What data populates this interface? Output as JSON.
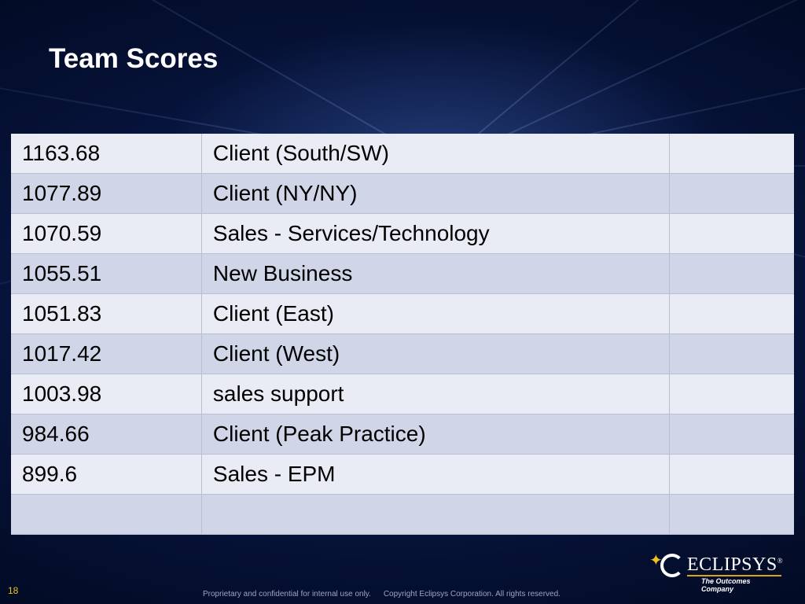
{
  "slide": {
    "title": "Team Scores",
    "page_number": "18"
  },
  "table": {
    "rows": [
      {
        "score": "1163.68",
        "team": "Client (South/SW)",
        "extra": ""
      },
      {
        "score": "1077.89",
        "team": "Client (NY/NY)",
        "extra": ""
      },
      {
        "score": "1070.59",
        "team": "Sales - Services/Technology",
        "extra": ""
      },
      {
        "score": "1055.51",
        "team": "New Business",
        "extra": ""
      },
      {
        "score": "1051.83",
        "team": "Client (East)",
        "extra": ""
      },
      {
        "score": "1017.42",
        "team": "Client (West)",
        "extra": ""
      },
      {
        "score": "1003.98",
        "team": "sales support",
        "extra": ""
      },
      {
        "score": "984.66",
        "team": "Client (Peak Practice)",
        "extra": ""
      },
      {
        "score": "899.6",
        "team": "Sales - EPM",
        "extra": ""
      },
      {
        "score": "",
        "team": "",
        "extra": ""
      }
    ]
  },
  "logo": {
    "name": "ECLIPSYS",
    "tagline": "The Outcomes Company",
    "mark": "®"
  },
  "footer": {
    "confidential": "Proprietary and confidential for internal use only.",
    "copyright": "Copyright Eclipsys Corporation. All rights reserved."
  },
  "colors": {
    "background": "#071540",
    "row_light": "#e9ecf4",
    "row_dark": "#d0d6e7",
    "accent": "#f0c020"
  }
}
